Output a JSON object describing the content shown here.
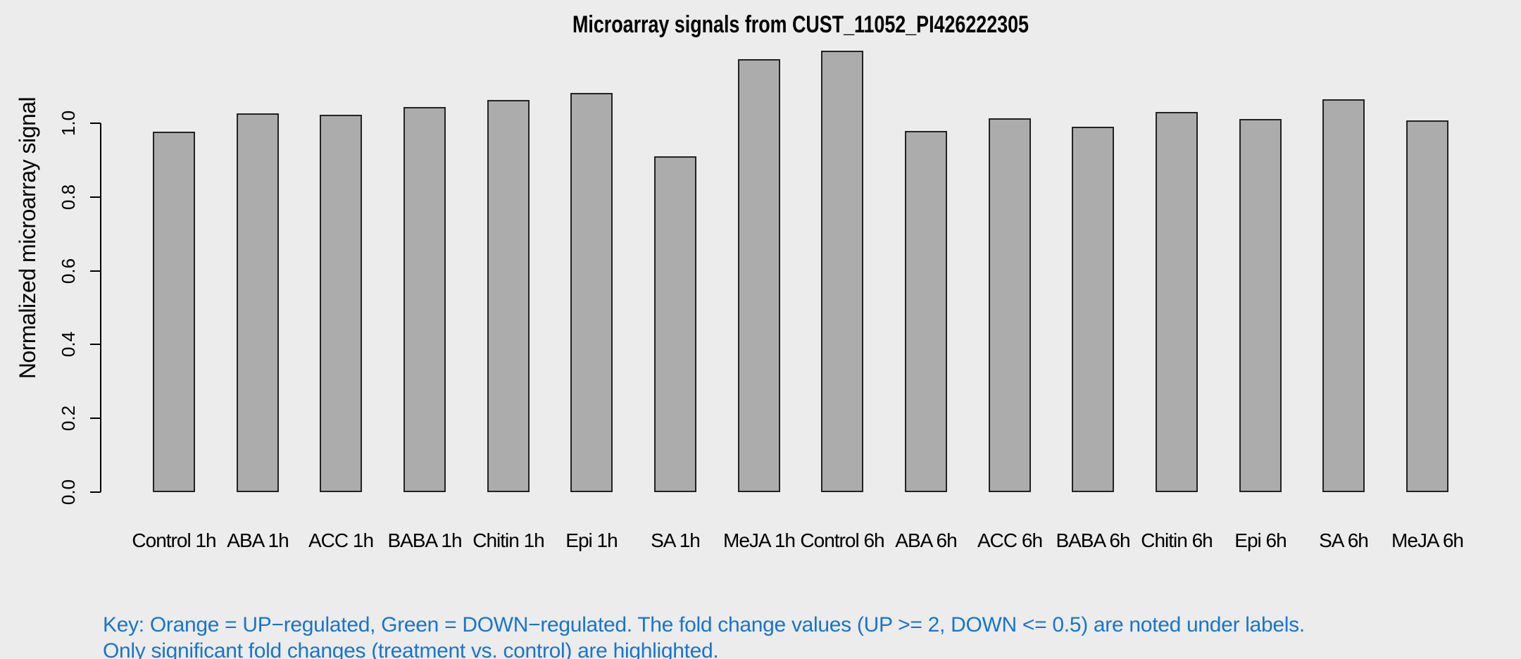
{
  "chart_data": {
    "type": "bar",
    "title": "Microarray signals from CUST_11052_PI426222305",
    "xlabel": "",
    "ylabel": "Normalized microarray signal",
    "categories": [
      "Control 1h",
      "ABA 1h",
      "ACC 1h",
      "BABA 1h",
      "Chitin 1h",
      "Epi 1h",
      "SA 1h",
      "MeJA 1h",
      "Control 6h",
      "ABA 6h",
      "ACC 6h",
      "BABA 6h",
      "Chitin 6h",
      "Epi 6h",
      "SA 6h",
      "MeJA 6h"
    ],
    "values": [
      0.977,
      1.027,
      1.023,
      1.044,
      1.063,
      1.082,
      0.91,
      1.173,
      1.197,
      0.979,
      1.013,
      0.991,
      1.03,
      1.011,
      1.064,
      1.008
    ],
    "yticks": [
      0.0,
      0.2,
      0.4,
      0.6,
      0.8,
      1.0
    ],
    "ytick_labels": [
      "0.0",
      "0.2",
      "0.4",
      "0.6",
      "0.8",
      "1.0"
    ],
    "ylim": [
      0,
      1.2
    ],
    "grid": false,
    "legend": "none",
    "bar_fill_color": "#ACACAC",
    "bar_border_color": "#222222",
    "axis_color": "#000000",
    "background_color": "#ECECEC"
  },
  "footnote": {
    "line1": "Key: Orange = UP−regulated, Green = DOWN−regulated. The fold change values (UP >= 2, DOWN <= 0.5) are noted under labels.",
    "line2": "Only significant fold changes (treatment vs. control) are highlighted.",
    "color": "#1874CD"
  }
}
